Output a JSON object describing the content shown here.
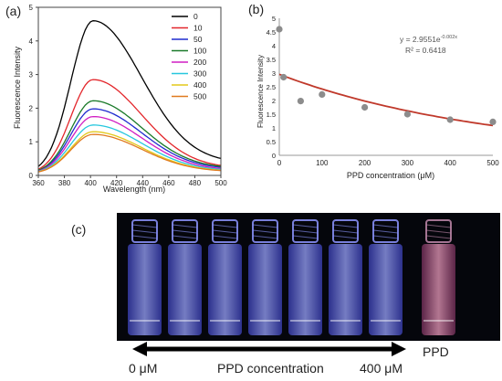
{
  "panels": {
    "a": "(a)",
    "b": "(b)",
    "c": "(c)"
  },
  "colors": {
    "fit_line": "#c0392b",
    "scatter_point": "#8c8c8c",
    "photo_bg": "#05060c",
    "vial_glow": "#7f86ff",
    "ppd_vial": "#c06a8a"
  },
  "chart_data": [
    {
      "type": "line",
      "xlabel": "Wavelength (nm)",
      "ylabel": "Fluorescence  Intensity",
      "xlim": [
        360,
        500
      ],
      "ylim": [
        0,
        5
      ],
      "xticks": [
        "360",
        "380",
        "400",
        "420",
        "440",
        "460",
        "480",
        "500"
      ],
      "yticks": [
        "0",
        "1",
        "2",
        "3",
        "4",
        "5"
      ],
      "legend_position": "top-right",
      "series": [
        {
          "name": "0",
          "color": "#000000",
          "peak": 4.6,
          "baseline": 0.05,
          "tail": 0.38
        },
        {
          "name": "10",
          "color": "#e3262b",
          "peak": 2.85,
          "baseline": 0.05,
          "tail": 0.22
        },
        {
          "name": "50",
          "color": "#1f2bcf",
          "peak": 1.98,
          "baseline": 0.05,
          "tail": 0.19
        },
        {
          "name": "100",
          "color": "#1b7a2a",
          "peak": 2.22,
          "baseline": 0.05,
          "tail": 0.21
        },
        {
          "name": "200",
          "color": "#d11ec3",
          "peak": 1.75,
          "baseline": 0.05,
          "tail": 0.16
        },
        {
          "name": "300",
          "color": "#27c7de",
          "peak": 1.5,
          "baseline": 0.05,
          "tail": 0.14
        },
        {
          "name": "400",
          "color": "#e3c81a",
          "peak": 1.3,
          "baseline": 0.05,
          "tail": 0.12
        },
        {
          "name": "500",
          "color": "#e07a1f",
          "peak": 1.22,
          "baseline": 0.05,
          "tail": 0.11
        }
      ]
    },
    {
      "type": "scatter",
      "xlabel": "PPD concentration (μM)",
      "ylabel": "Fluorescence  Intensity",
      "xlim": [
        0,
        500
      ],
      "ylim": [
        0,
        5
      ],
      "xticks": [
        "0",
        "100",
        "200",
        "300",
        "400",
        "500"
      ],
      "yticks": [
        "0",
        "0.5",
        "1",
        "1.5",
        "2",
        "2.5",
        "3",
        "3.5",
        "4",
        "4.5",
        "5"
      ],
      "points": [
        {
          "x": 0,
          "y": 4.6
        },
        {
          "x": 10,
          "y": 2.85
        },
        {
          "x": 50,
          "y": 1.98
        },
        {
          "x": 100,
          "y": 2.22
        },
        {
          "x": 200,
          "y": 1.75
        },
        {
          "x": 300,
          "y": 1.5
        },
        {
          "x": 400,
          "y": 1.3
        },
        {
          "x": 500,
          "y": 1.22
        }
      ],
      "fit": {
        "a": 2.9551,
        "k": -0.002
      },
      "equation": "y = 2.9551e",
      "equation_exp": "-0.002x",
      "r2": "R² = 0.6418"
    }
  ],
  "photo": {
    "left_label": "0 μM",
    "center_label": "PPD concentration",
    "right_label": "400 μM",
    "ppd_label": "PPD"
  }
}
